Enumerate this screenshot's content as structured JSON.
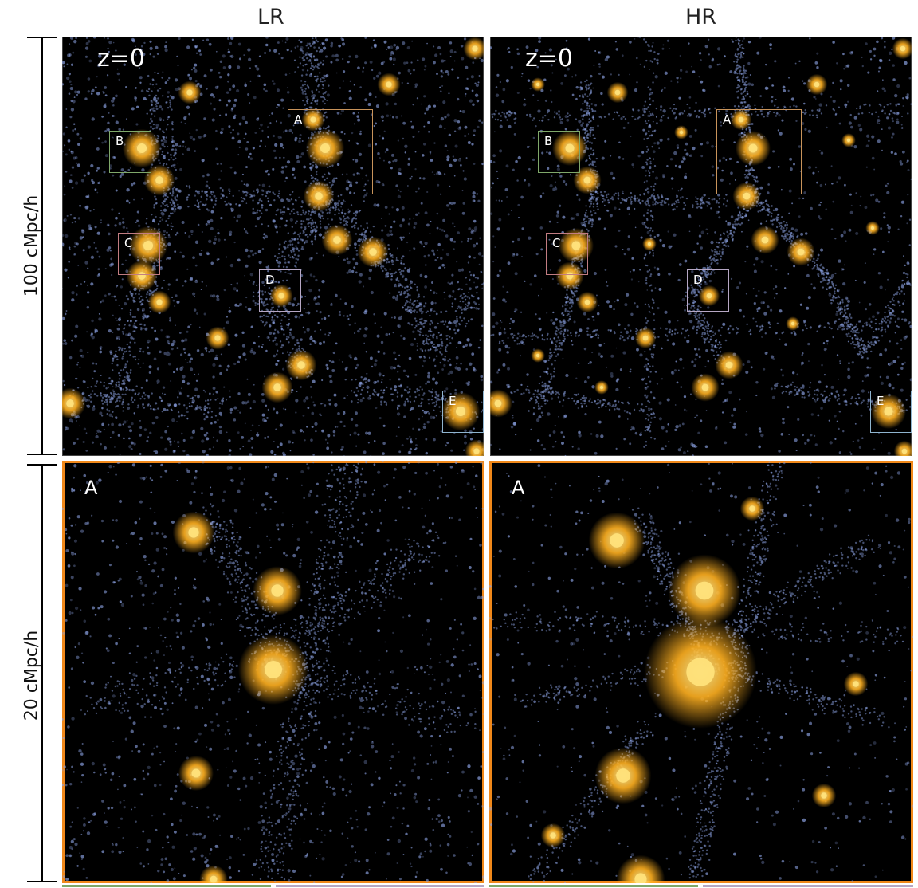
{
  "columns": {
    "left": "LR",
    "right": "HR"
  },
  "scale_labels": {
    "top": "100 cMpc/h",
    "bottom": "20 cMpc/h"
  },
  "redshift_label": "z=0",
  "zoom_label": "A",
  "regions": [
    {
      "id": "A",
      "color": "#c8935a"
    },
    {
      "id": "B",
      "color": "#7fa86a"
    },
    {
      "id": "C",
      "color": "#c27d82"
    },
    {
      "id": "D",
      "color": "#b6a7c4"
    },
    {
      "id": "E",
      "color": "#8fb4cf"
    }
  ],
  "colors": {
    "dark_matter_particles": "#8aa0e0",
    "halos": "#ffb020",
    "zoom_border": "#f0881a",
    "background": "#000000"
  }
}
